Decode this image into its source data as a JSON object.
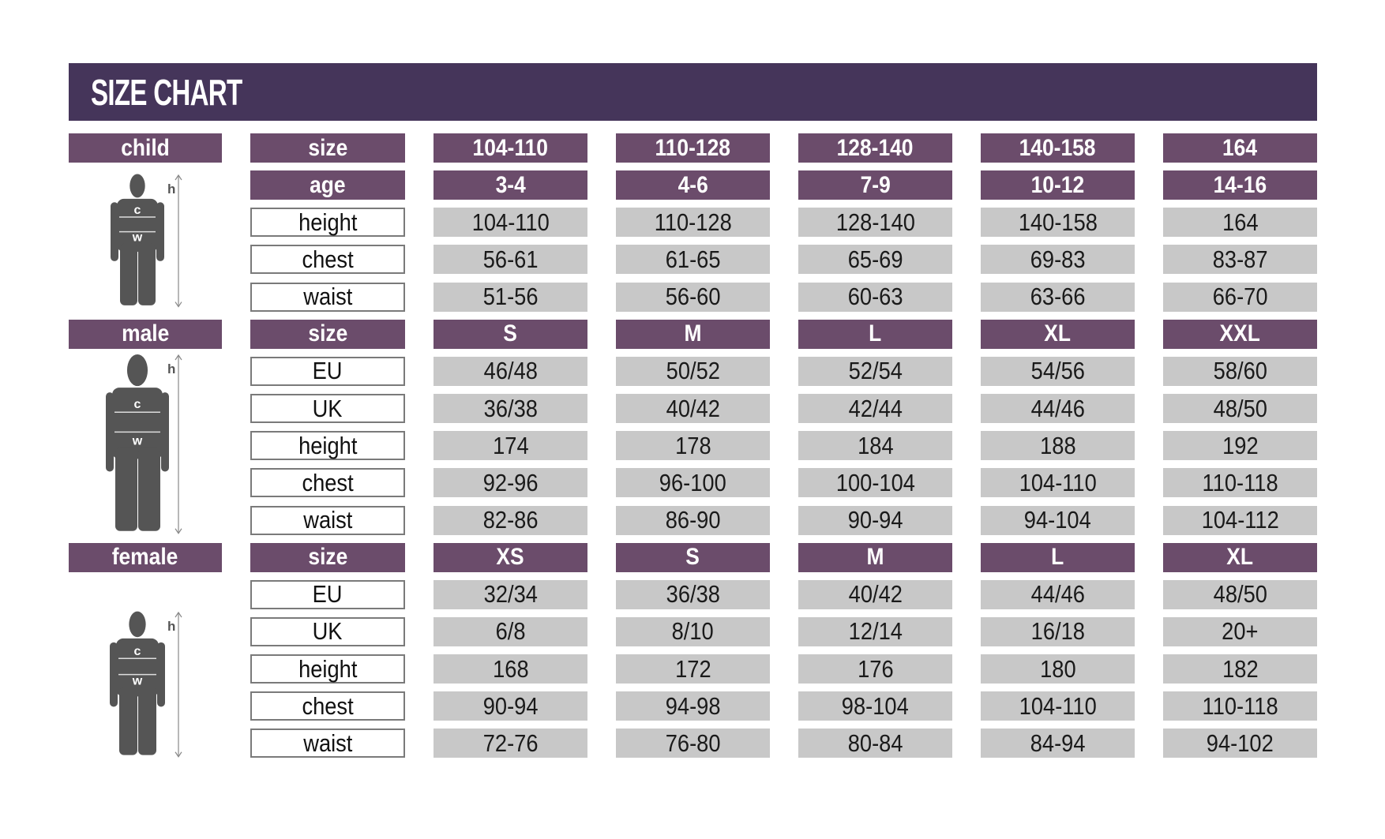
{
  "title": "SIZE CHART",
  "colors": {
    "title_bar": "#45355a",
    "header_cell": "#6b4c6b",
    "value_cell": "#c8c8c8",
    "figure": "#555555"
  },
  "sections": [
    {
      "label": "child",
      "figure_icon": "child-silhouette-icon",
      "figure_marks": {
        "h": "h",
        "c": "c",
        "w": "w"
      },
      "header_rows": [
        {
          "label": "size",
          "values": [
            "104-110",
            "110-128",
            "128-140",
            "140-158",
            "164"
          ]
        },
        {
          "label": "age",
          "values": [
            "3-4",
            "4-6",
            "7-9",
            "10-12",
            "14-16"
          ]
        }
      ],
      "rows": [
        {
          "label": "height",
          "values": [
            "104-110",
            "110-128",
            "128-140",
            "140-158",
            "164"
          ]
        },
        {
          "label": "chest",
          "values": [
            "56-61",
            "61-65",
            "65-69",
            "69-83",
            "83-87"
          ]
        },
        {
          "label": "waist",
          "values": [
            "51-56",
            "56-60",
            "60-63",
            "63-66",
            "66-70"
          ]
        }
      ]
    },
    {
      "label": "male",
      "figure_icon": "male-silhouette-icon",
      "figure_marks": {
        "h": "h",
        "c": "c",
        "w": "w"
      },
      "header_rows": [
        {
          "label": "size",
          "values": [
            "S",
            "M",
            "L",
            "XL",
            "XXL"
          ]
        }
      ],
      "rows": [
        {
          "label": "EU",
          "values": [
            "46/48",
            "50/52",
            "52/54",
            "54/56",
            "58/60"
          ]
        },
        {
          "label": "UK",
          "values": [
            "36/38",
            "40/42",
            "42/44",
            "44/46",
            "48/50"
          ]
        },
        {
          "label": "height",
          "values": [
            "174",
            "178",
            "184",
            "188",
            "192"
          ]
        },
        {
          "label": "chest",
          "values": [
            "92-96",
            "96-100",
            "100-104",
            "104-110",
            "110-118"
          ]
        },
        {
          "label": "waist",
          "values": [
            "82-86",
            "86-90",
            "90-94",
            "94-104",
            "104-112"
          ]
        }
      ]
    },
    {
      "label": "female",
      "figure_icon": "female-silhouette-icon",
      "figure_marks": {
        "h": "h",
        "c": "c",
        "w": "w"
      },
      "header_rows": [
        {
          "label": "size",
          "values": [
            "XS",
            "S",
            "M",
            "L",
            "XL"
          ]
        }
      ],
      "rows": [
        {
          "label": "EU",
          "values": [
            "32/34",
            "36/38",
            "40/42",
            "44/46",
            "48/50"
          ]
        },
        {
          "label": "UK",
          "values": [
            "6/8",
            "8/10",
            "12/14",
            "16/18",
            "20+"
          ]
        },
        {
          "label": "height",
          "values": [
            "168",
            "172",
            "176",
            "180",
            "182"
          ]
        },
        {
          "label": "chest",
          "values": [
            "90-94",
            "94-98",
            "98-104",
            "104-110",
            "110-118"
          ]
        },
        {
          "label": "waist",
          "values": [
            "72-76",
            "76-80",
            "80-84",
            "84-94",
            "94-102"
          ]
        }
      ]
    }
  ]
}
